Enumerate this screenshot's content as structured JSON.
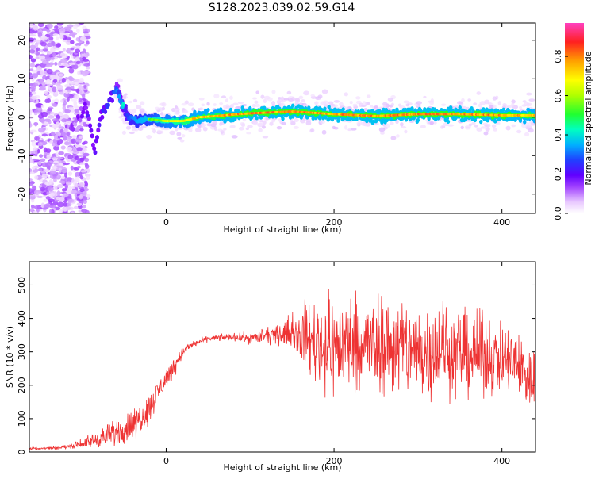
{
  "title": "S128.2023.039.02.59.G14",
  "chart_data": [
    {
      "type": "heatmap",
      "title": "S128.2023.039.02.59.G14",
      "xlabel": "Height of straight line (km)",
      "ylabel": "Frequency (Hz)",
      "xlim": [
        -163,
        440
      ],
      "ylim": [
        -25,
        24.5
      ],
      "xticks": [
        0,
        200,
        400
      ],
      "yticks": [
        -20,
        -10,
        0,
        10,
        20
      ],
      "colorbar": {
        "label": "Normalized spectral amplitude",
        "range": [
          0,
          0.97
        ],
        "ticks": [
          "0.0",
          "0.2",
          "0.4",
          "0.6",
          "0.8"
        ],
        "tick_values": [
          0,
          0.2,
          0.4,
          0.6,
          0.8
        ],
        "colormap": [
          "#ffffff",
          "#f0d8ff",
          "#c080ff",
          "#8000ff",
          "#3030ff",
          "#00b0ff",
          "#00ffc0",
          "#20ff20",
          "#c0ff00",
          "#ffff00",
          "#ffa000",
          "#ff3030",
          "#ff40c0"
        ]
      },
      "ridge": {
        "description_points_x": [
          -130,
          -120,
          -105,
          -95,
          -85,
          -75,
          -65,
          -58,
          -52,
          -45,
          -35,
          -20,
          0,
          20,
          40,
          60,
          80,
          100,
          150,
          200,
          250,
          300,
          350,
          400,
          440
        ],
        "frequency_hz": [
          -6,
          -4,
          0,
          3,
          -8,
          2,
          5,
          8,
          3,
          0,
          -1,
          -0.5,
          -1,
          -1,
          0,
          0.3,
          0.7,
          1,
          1.5,
          0.8,
          0.3,
          0.8,
          0.8,
          0.5,
          0.5
        ],
        "amplitude": [
          0.1,
          0.1,
          0.15,
          0.2,
          0.2,
          0.25,
          0.25,
          0.3,
          0.4,
          0.5,
          0.6,
          0.65,
          0.75,
          0.8,
          0.85,
          0.85,
          0.9,
          0.9,
          0.9,
          0.9,
          0.9,
          0.9,
          0.9,
          0.9,
          0.85
        ]
      }
    },
    {
      "type": "line",
      "xlabel": "Height of straight line (km)",
      "ylabel": "SNR (10 * v/v)",
      "xlim": [
        -163,
        440
      ],
      "ylim": [
        0,
        570
      ],
      "xticks": [
        0,
        200,
        400
      ],
      "yticks": [
        0,
        100,
        200,
        300,
        400,
        500
      ],
      "color": "#ee3333",
      "envelope": {
        "x": [
          -163,
          -140,
          -120,
          -100,
          -80,
          -60,
          -40,
          -20,
          -10,
          0,
          10,
          20,
          30,
          50,
          80,
          100,
          130,
          150,
          170,
          190,
          210,
          230,
          250,
          280,
          300,
          330,
          350,
          380,
          400,
          420,
          440
        ],
        "mean": [
          10,
          12,
          15,
          25,
          40,
          60,
          80,
          130,
          180,
          220,
          260,
          300,
          320,
          340,
          345,
          340,
          350,
          360,
          340,
          320,
          320,
          330,
          310,
          320,
          300,
          310,
          300,
          290,
          280,
          260,
          200
        ],
        "spread": [
          3,
          4,
          6,
          12,
          25,
          35,
          45,
          40,
          35,
          30,
          25,
          15,
          10,
          8,
          10,
          15,
          25,
          40,
          100,
          140,
          140,
          130,
          130,
          140,
          140,
          130,
          120,
          110,
          100,
          100,
          90
        ]
      }
    }
  ]
}
